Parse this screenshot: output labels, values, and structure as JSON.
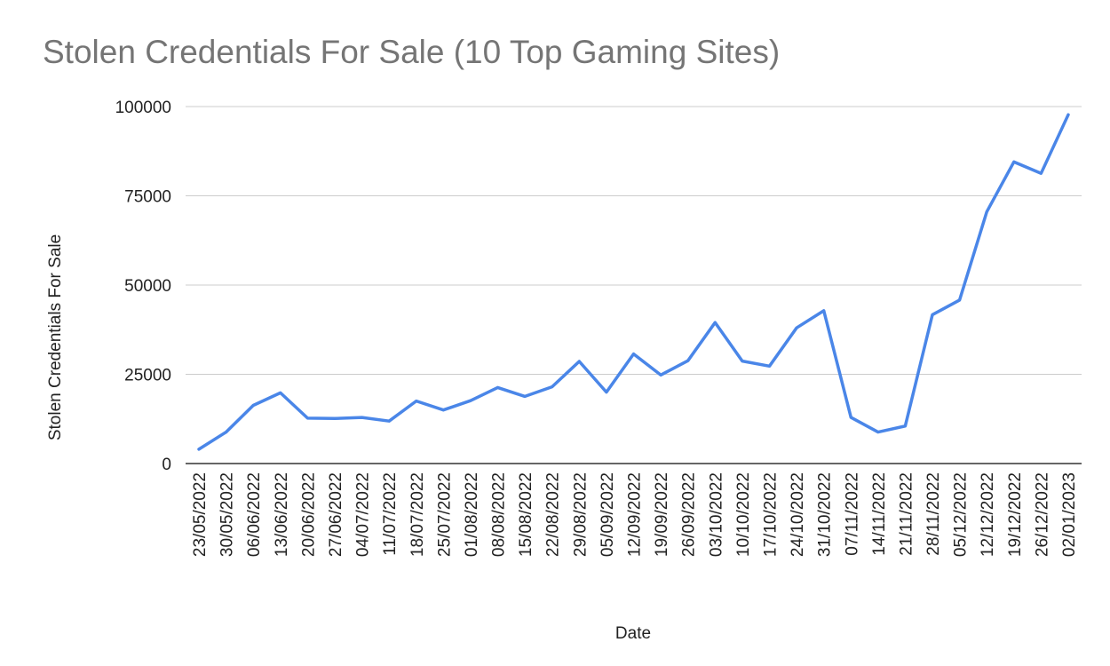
{
  "chart_data": {
    "type": "line",
    "title": "Stolen Credentials For Sale (10 Top Gaming Sites)",
    "xlabel": "Date",
    "ylabel": "Stolen Credentials For Sale",
    "ylim": [
      0,
      100000
    ],
    "yticks": [
      "0",
      "25000",
      "50000",
      "75000",
      "100000"
    ],
    "grid": true,
    "legend": "none",
    "x": [
      "23/05/2022",
      "30/05/2022",
      "06/06/2022",
      "13/06/2022",
      "20/06/2022",
      "27/06/2022",
      "04/07/2022",
      "11/07/2022",
      "18/07/2022",
      "25/07/2022",
      "01/08/2022",
      "08/08/2022",
      "15/08/2022",
      "22/08/2022",
      "29/08/2022",
      "05/09/2022",
      "12/09/2022",
      "19/09/2022",
      "26/09/2022",
      "03/10/2022",
      "10/10/2022",
      "17/10/2022",
      "24/10/2022",
      "31/10/2022",
      "07/11/2022",
      "14/11/2022",
      "21/11/2022",
      "28/11/2022",
      "05/12/2022",
      "12/12/2022",
      "19/12/2022",
      "26/12/2022",
      "02/01/2023"
    ],
    "series": [
      {
        "color": "#4a86e8",
        "values": [
          4000,
          8800,
          16300,
          19800,
          12700,
          12600,
          12900,
          11900,
          17500,
          15000,
          17600,
          21300,
          18800,
          21500,
          28600,
          20000,
          30700,
          24800,
          28800,
          39500,
          28700,
          27300,
          38000,
          42800,
          12900,
          8800,
          10500,
          41700,
          45800,
          70500,
          84500,
          81300,
          97700
        ]
      }
    ]
  }
}
